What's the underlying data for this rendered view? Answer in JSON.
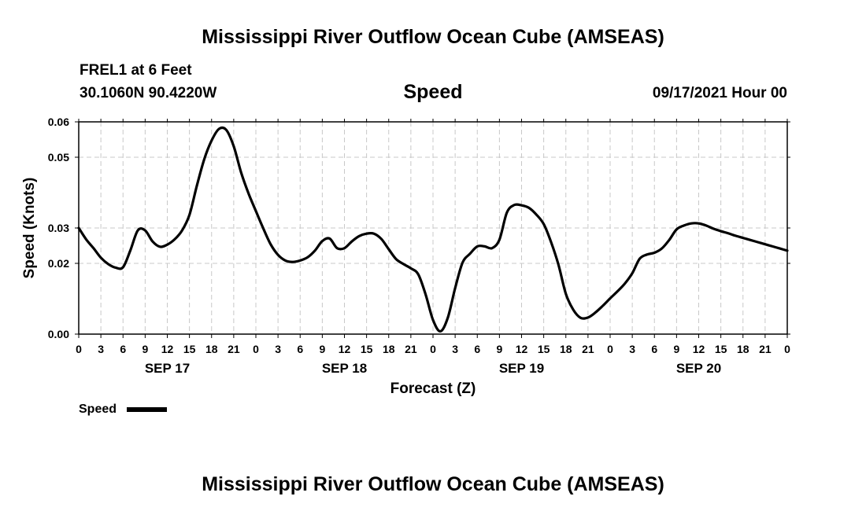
{
  "header": {
    "title": "Mississippi River Outflow Ocean Cube (AMSEAS)",
    "station": "FREL1 at 6 Feet",
    "coords": "30.1060N  90.4220W",
    "variable": "Speed",
    "datetime": "09/17/2021 Hour 00"
  },
  "footer": {
    "title": "Mississippi River Outflow Ocean Cube (AMSEAS)"
  },
  "legend": {
    "label": "Speed"
  },
  "chart_data": {
    "type": "line",
    "title": "Speed",
    "xlabel": "Forecast (Z)",
    "ylabel": "Speed (Knots)",
    "xlim": [
      0,
      96
    ],
    "ylim": [
      0.0,
      0.06
    ],
    "grid": true,
    "legend_position": "bottom-left",
    "x_unit": "hours since 09/17/2021 00Z",
    "x_ticks": [
      0,
      3,
      6,
      9,
      12,
      15,
      18,
      21,
      24,
      27,
      30,
      33,
      36,
      39,
      42,
      45,
      48,
      51,
      54,
      57,
      60,
      63,
      66,
      69,
      72,
      75,
      78,
      81,
      84,
      87,
      90,
      93,
      96
    ],
    "x_tick_labels": [
      "0",
      "3",
      "6",
      "9",
      "12",
      "15",
      "18",
      "21",
      "0",
      "3",
      "6",
      "9",
      "12",
      "15",
      "18",
      "21",
      "0",
      "3",
      "6",
      "9",
      "12",
      "15",
      "18",
      "21",
      "0",
      "3",
      "6",
      "9",
      "12",
      "15",
      "18",
      "21",
      "0"
    ],
    "y_ticks": [
      0.0,
      0.02,
      0.03,
      0.05,
      0.06
    ],
    "y_tick_labels": [
      "0.00",
      "0.02",
      "0.03",
      "0.05",
      "0.06"
    ],
    "day_labels": [
      {
        "x": 12,
        "label": "SEP 17"
      },
      {
        "x": 36,
        "label": "SEP 18"
      },
      {
        "x": 60,
        "label": "SEP 19"
      },
      {
        "x": 84,
        "label": "SEP 20"
      }
    ],
    "series": [
      {
        "name": "Speed",
        "color": "#000000",
        "x": [
          0,
          1,
          2,
          3,
          4,
          5,
          6,
          7,
          8,
          9,
          10,
          11,
          12,
          13,
          14,
          15,
          16,
          17,
          18,
          19,
          20,
          21,
          22,
          23,
          24,
          25,
          26,
          27,
          28,
          29,
          30,
          31,
          32,
          33,
          34,
          35,
          36,
          37,
          38,
          39,
          40,
          41,
          42,
          43,
          44,
          45,
          46,
          47,
          48,
          49,
          50,
          51,
          52,
          53,
          54,
          55,
          56,
          57,
          58,
          59,
          60,
          61,
          62,
          63,
          64,
          65,
          66,
          67,
          68,
          69,
          70,
          71,
          72,
          73,
          74,
          75,
          76,
          77,
          78,
          79,
          80,
          81,
          82,
          83,
          84,
          85,
          86,
          87,
          88,
          89,
          90,
          91,
          92,
          93,
          94,
          95,
          96
        ],
        "values": [
          0.03,
          0.0268,
          0.0243,
          0.0216,
          0.0198,
          0.0188,
          0.0189,
          0.0237,
          0.0293,
          0.0293,
          0.0262,
          0.0247,
          0.0253,
          0.0268,
          0.0293,
          0.0337,
          0.0419,
          0.0494,
          0.0547,
          0.058,
          0.0577,
          0.0531,
          0.0457,
          0.0398,
          0.0348,
          0.0299,
          0.0254,
          0.0224,
          0.0208,
          0.0204,
          0.0208,
          0.0217,
          0.0236,
          0.0263,
          0.027,
          0.0243,
          0.0243,
          0.0262,
          0.0277,
          0.0284,
          0.0284,
          0.0269,
          0.024,
          0.0212,
          0.0198,
          0.0186,
          0.0169,
          0.0112,
          0.004,
          0.0008,
          0.0046,
          0.013,
          0.0202,
          0.0227,
          0.0248,
          0.0248,
          0.0243,
          0.0267,
          0.0343,
          0.0365,
          0.0364,
          0.0357,
          0.0338,
          0.0311,
          0.026,
          0.0196,
          0.0114,
          0.0069,
          0.0046,
          0.0047,
          0.0061,
          0.008,
          0.0101,
          0.0121,
          0.0143,
          0.0172,
          0.0213,
          0.0225,
          0.023,
          0.0242,
          0.0266,
          0.0296,
          0.0307,
          0.0313,
          0.0313,
          0.0307,
          0.0298,
          0.0291,
          0.0285,
          0.0278,
          0.0272,
          0.0266,
          0.026,
          0.0254,
          0.0248,
          0.0242,
          0.0236
        ]
      }
    ]
  }
}
